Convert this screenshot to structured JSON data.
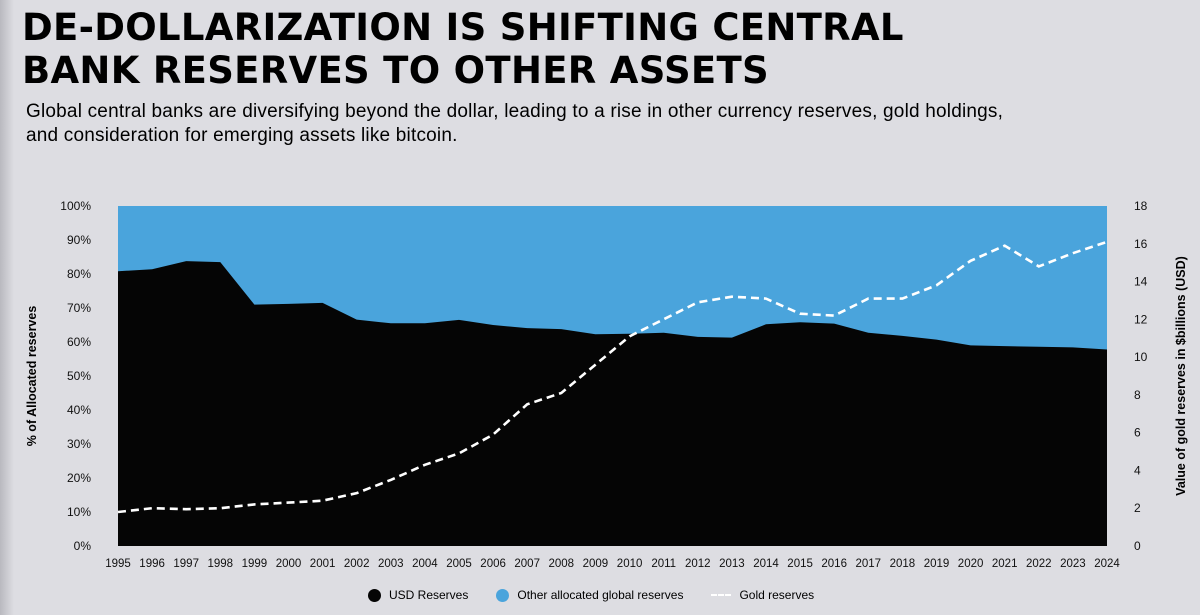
{
  "title": "DE-DOLLARIZATION IS SHIFTING CENTRAL BANK RESERVES TO OTHER ASSETS",
  "subtitle": "Global central banks are diversifying beyond the dollar, leading to a rise in other currency reserves, gold holdings, and consideration for emerging assets like bitcoin.",
  "chart_data": {
    "type": "area",
    "categories": [
      "1995",
      "1996",
      "1997",
      "1998",
      "1999",
      "2000",
      "2001",
      "2002",
      "2003",
      "2004",
      "2005",
      "2006",
      "2007",
      "2008",
      "2009",
      "2010",
      "2011",
      "2012",
      "2013",
      "2014",
      "2015",
      "2016",
      "2017",
      "2018",
      "2019",
      "2020",
      "2021",
      "2022",
      "2023",
      "2024"
    ],
    "series": [
      {
        "name": "USD Reserves",
        "axis": "left",
        "unit": "%",
        "values": [
          80.8,
          81.4,
          83.8,
          83.5,
          71.0,
          71.2,
          71.5,
          66.6,
          65.5,
          65.5,
          66.5,
          65.0,
          64.1,
          63.8,
          62.3,
          62.4,
          62.7,
          61.5,
          61.3,
          65.2,
          65.8,
          65.4,
          62.7,
          61.8,
          60.7,
          59.0,
          58.8,
          58.6,
          58.4,
          57.8
        ]
      },
      {
        "name": "Other allocated global reserves",
        "axis": "left",
        "unit": "%",
        "values": [
          19.2,
          18.6,
          16.2,
          16.5,
          29.0,
          28.8,
          28.5,
          33.4,
          34.5,
          34.5,
          33.5,
          35.0,
          35.9,
          36.2,
          37.7,
          37.6,
          37.3,
          38.5,
          38.7,
          34.8,
          34.2,
          34.6,
          37.3,
          38.2,
          39.3,
          41.0,
          41.2,
          41.4,
          41.6,
          42.2
        ]
      },
      {
        "name": "Gold reserves",
        "axis": "right",
        "unit": "$billions (USD)",
        "values": [
          1.8,
          2.0,
          1.95,
          2.0,
          2.2,
          2.3,
          2.4,
          2.8,
          3.5,
          4.3,
          4.9,
          5.9,
          7.5,
          8.1,
          9.6,
          11.1,
          12.0,
          12.9,
          13.2,
          13.1,
          12.3,
          12.2,
          13.1,
          13.1,
          13.8,
          15.1,
          15.9,
          14.8,
          15.5,
          16.1
        ]
      }
    ],
    "left_axis": {
      "label": "% of Allocated reserves",
      "range": [
        0,
        100
      ],
      "ticks": [
        "0%",
        "10%",
        "20%",
        "30%",
        "40%",
        "50%",
        "60%",
        "70%",
        "80%",
        "90%",
        "100%"
      ]
    },
    "right_axis": {
      "label": "Value of gold reserves in $billions (USD)",
      "range": [
        0,
        18
      ],
      "ticks": [
        "0",
        "2",
        "4",
        "6",
        "8",
        "10",
        "12",
        "14",
        "16",
        "18"
      ]
    },
    "legend_position": "bottom",
    "grid": false
  },
  "colors": {
    "usd": "#050505",
    "other": "#4aa4dc",
    "gold": "#ffffff",
    "background": "#dddde2"
  }
}
